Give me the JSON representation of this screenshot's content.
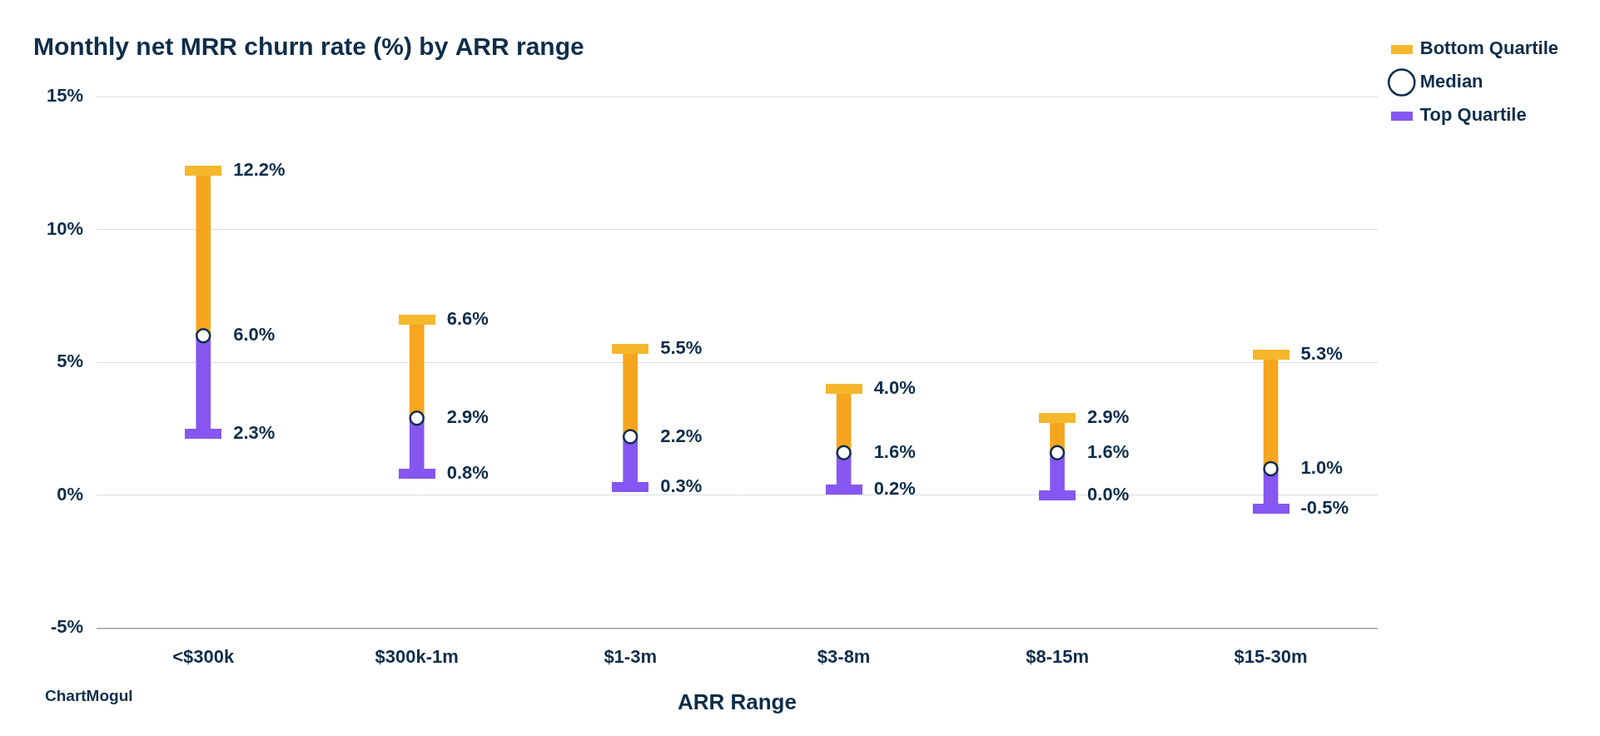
{
  "chart_data": {
    "type": "range",
    "title": "Monthly net MRR churn rate (%) by ARR range",
    "x_label": "ARR Range",
    "source": "ChartMogul",
    "categories": [
      "<$300k",
      "$300k-1m",
      "$1-3m",
      "$3-8m",
      "$8-15m",
      "$15-30m"
    ],
    "series": [
      {
        "name": "Bottom Quartile",
        "color": "#f5b72c",
        "values": [
          12.2,
          6.6,
          5.5,
          4.0,
          2.9,
          5.3
        ],
        "value_labels": [
          "12.2%",
          "6.6%",
          "5.5%",
          "4.0%",
          "2.9%",
          "5.3%"
        ]
      },
      {
        "name": "Median",
        "color": "#0d2d4a",
        "marker": "circle",
        "values": [
          6.0,
          2.9,
          2.2,
          1.6,
          1.6,
          1.0
        ],
        "value_labels": [
          "6.0%",
          "2.9%",
          "2.2%",
          "1.6%",
          "1.6%",
          "1.0%"
        ]
      },
      {
        "name": "Top Quartile",
        "color": "#8657f0",
        "values": [
          2.3,
          0.8,
          0.3,
          0.2,
          0.0,
          -0.5
        ],
        "value_labels": [
          "2.3%",
          "0.8%",
          "0.3%",
          "0.2%",
          "0.0%",
          "-0.5%"
        ]
      }
    ],
    "ylim": [
      -5,
      15
    ],
    "yticks": [
      {
        "value": -5,
        "label": "-5%"
      },
      {
        "value": 0,
        "label": "0%"
      },
      {
        "value": 5,
        "label": "5%"
      },
      {
        "value": 10,
        "label": "10%"
      },
      {
        "value": 15,
        "label": "15%"
      }
    ],
    "grid": true,
    "legend": "right",
    "data_labels": true
  }
}
